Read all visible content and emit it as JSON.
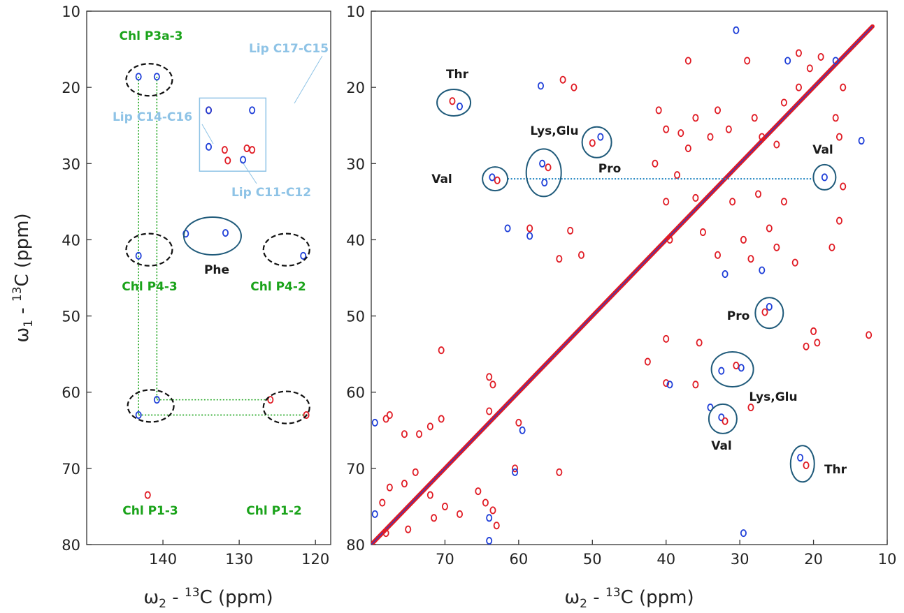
{
  "chart_data": [
    {
      "type": "heatmap",
      "panel": "left",
      "xlabel": "ω2 - 13C (ppm)",
      "ylabel": "ω1 - 13C (ppm)",
      "xlim": [
        150,
        118
      ],
      "ylim": [
        10,
        80
      ],
      "xticks": [
        140,
        130,
        120
      ],
      "yticks": [
        10,
        20,
        30,
        40,
        50,
        60,
        70,
        80
      ],
      "colors": {
        "positive": "#e01b24",
        "negative": "#1f3fd8",
        "green": "#1aa31a",
        "lightblue": "#8ec3e6",
        "circle": "#1f5a7a"
      },
      "peaks": [
        {
          "x": 143.2,
          "y": 18.6,
          "sign": "neg"
        },
        {
          "x": 140.8,
          "y": 18.6,
          "sign": "neg"
        },
        {
          "x": 134.0,
          "y": 23.0,
          "sign": "pos"
        },
        {
          "x": 134.0,
          "y": 23.0,
          "sign": "neg"
        },
        {
          "x": 128.3,
          "y": 23.0,
          "sign": "neg"
        },
        {
          "x": 134.0,
          "y": 27.8,
          "sign": "neg"
        },
        {
          "x": 131.9,
          "y": 28.2,
          "sign": "pos"
        },
        {
          "x": 129.0,
          "y": 28.0,
          "sign": "pos"
        },
        {
          "x": 128.3,
          "y": 28.2,
          "sign": "pos"
        },
        {
          "x": 131.5,
          "y": 29.6,
          "sign": "pos"
        },
        {
          "x": 129.5,
          "y": 29.5,
          "sign": "neg"
        },
        {
          "x": 137.0,
          "y": 39.2,
          "sign": "neg"
        },
        {
          "x": 131.8,
          "y": 39.1,
          "sign": "neg"
        },
        {
          "x": 143.2,
          "y": 42.1,
          "sign": "neg"
        },
        {
          "x": 121.6,
          "y": 42.1,
          "sign": "neg"
        },
        {
          "x": 140.8,
          "y": 61.0,
          "sign": "neg"
        },
        {
          "x": 143.2,
          "y": 63.0,
          "sign": "neg"
        },
        {
          "x": 125.9,
          "y": 61.0,
          "sign": "pos"
        },
        {
          "x": 121.2,
          "y": 63.0,
          "sign": "pos"
        },
        {
          "x": 142.0,
          "y": 73.5,
          "sign": "pos"
        }
      ],
      "dashed_circles": [
        {
          "x": 141.8,
          "y": 19.0,
          "label": "Chl P3a-3"
        },
        {
          "x": 141.8,
          "y": 41.3,
          "label": "Chl P4-3"
        },
        {
          "x": 123.8,
          "y": 41.3,
          "label": "Chl P4-2"
        },
        {
          "x": 141.6,
          "y": 61.8,
          "label": "Chl P1-3"
        },
        {
          "x": 123.8,
          "y": 62.0,
          "label": "Chl P1-2"
        }
      ],
      "green_lines": [
        {
          "x1": 143.2,
          "y1": 18.6,
          "x2": 143.2,
          "y2": 63.0
        },
        {
          "x1": 140.8,
          "y1": 18.6,
          "x2": 140.8,
          "y2": 61.0
        },
        {
          "x1": 140.8,
          "y1": 61.0,
          "x2": 125.9,
          "y2": 61.0
        },
        {
          "x1": 143.2,
          "y1": 63.0,
          "x2": 121.2,
          "y2": 63.0
        }
      ],
      "box": {
        "x1": 135.2,
        "y1": 21.4,
        "x2": 126.5,
        "y2": 31.0
      },
      "lip_labels": [
        "Lip C17-C15",
        "Lip C14-C16",
        "Lip C11-C12"
      ],
      "phe": {
        "x": 133.5,
        "y": 39.5,
        "label": "Phe"
      }
    },
    {
      "type": "heatmap",
      "panel": "right",
      "xlabel": "ω2 - 13C (ppm)",
      "ylabel": "",
      "xlim": [
        80,
        10
      ],
      "ylim": [
        10,
        80
      ],
      "xticks": [
        70,
        60,
        50,
        40,
        30,
        20,
        10
      ],
      "yticks": [
        10,
        20,
        30,
        40,
        50,
        60,
        70,
        80
      ],
      "diagonal": [
        80,
        12
      ],
      "annotations": [
        {
          "label": "Thr",
          "x": 68.8,
          "y": 22.0,
          "circle": true
        },
        {
          "label": "Lys,Glu",
          "x": 56.6,
          "y": 31.2,
          "circle": true
        },
        {
          "label": "Pro",
          "x": 49.4,
          "y": 27.2,
          "circle": true
        },
        {
          "label": "Val",
          "x": 63.2,
          "y": 32.0,
          "circle": true
        },
        {
          "label": "Val",
          "x": 18.5,
          "y": 31.8,
          "circle": true
        },
        {
          "label": "Pro",
          "x": 26.0,
          "y": 49.6,
          "circle": true
        },
        {
          "label": "Lys,Glu",
          "x": 31.0,
          "y": 57.0,
          "circle": true
        },
        {
          "label": "Val",
          "x": 32.3,
          "y": 63.5,
          "circle": true
        },
        {
          "label": "Thr",
          "x": 21.5,
          "y": 69.4,
          "circle": true
        }
      ],
      "dotted_line": {
        "x1": 63.2,
        "x2": 18.5,
        "y": 32.0
      },
      "peaks": [
        {
          "x": 69.0,
          "y": 21.8,
          "sign": "pos"
        },
        {
          "x": 68.0,
          "y": 22.5,
          "sign": "neg"
        },
        {
          "x": 56.8,
          "y": 30.0,
          "sign": "neg"
        },
        {
          "x": 56.0,
          "y": 30.5,
          "sign": "pos"
        },
        {
          "x": 56.5,
          "y": 32.5,
          "sign": "neg"
        },
        {
          "x": 50.0,
          "y": 27.3,
          "sign": "pos"
        },
        {
          "x": 48.9,
          "y": 26.5,
          "sign": "neg"
        },
        {
          "x": 63.6,
          "y": 31.8,
          "sign": "neg"
        },
        {
          "x": 62.9,
          "y": 32.2,
          "sign": "pos"
        },
        {
          "x": 18.5,
          "y": 31.8,
          "sign": "neg"
        },
        {
          "x": 26.0,
          "y": 48.8,
          "sign": "neg"
        },
        {
          "x": 26.6,
          "y": 49.5,
          "sign": "pos"
        },
        {
          "x": 32.5,
          "y": 57.2,
          "sign": "neg"
        },
        {
          "x": 29.8,
          "y": 56.8,
          "sign": "neg"
        },
        {
          "x": 30.5,
          "y": 56.5,
          "sign": "pos"
        },
        {
          "x": 32.5,
          "y": 63.3,
          "sign": "neg"
        },
        {
          "x": 32.0,
          "y": 63.8,
          "sign": "pos"
        },
        {
          "x": 21.8,
          "y": 68.6,
          "sign": "neg"
        },
        {
          "x": 21.0,
          "y": 69.6,
          "sign": "pos"
        },
        {
          "x": 54.0,
          "y": 19.0,
          "sign": "pos"
        },
        {
          "x": 52.5,
          "y": 20.0,
          "sign": "pos"
        },
        {
          "x": 57.0,
          "y": 19.8,
          "sign": "neg"
        },
        {
          "x": 41.0,
          "y": 23.0,
          "sign": "pos"
        },
        {
          "x": 40.0,
          "y": 25.5,
          "sign": "pos"
        },
        {
          "x": 38.0,
          "y": 26.0,
          "sign": "pos"
        },
        {
          "x": 37.0,
          "y": 28.0,
          "sign": "pos"
        },
        {
          "x": 36.0,
          "y": 24.0,
          "sign": "pos"
        },
        {
          "x": 34.0,
          "y": 26.5,
          "sign": "pos"
        },
        {
          "x": 33.0,
          "y": 23.0,
          "sign": "pos"
        },
        {
          "x": 31.5,
          "y": 25.5,
          "sign": "pos"
        },
        {
          "x": 28.0,
          "y": 24.0,
          "sign": "pos"
        },
        {
          "x": 27.0,
          "y": 26.5,
          "sign": "pos"
        },
        {
          "x": 25.0,
          "y": 27.5,
          "sign": "pos"
        },
        {
          "x": 24.0,
          "y": 22.0,
          "sign": "pos"
        },
        {
          "x": 22.0,
          "y": 20.0,
          "sign": "pos"
        },
        {
          "x": 20.5,
          "y": 17.5,
          "sign": "pos"
        },
        {
          "x": 19.0,
          "y": 16.0,
          "sign": "pos"
        },
        {
          "x": 16.0,
          "y": 20.0,
          "sign": "pos"
        },
        {
          "x": 17.0,
          "y": 24.0,
          "sign": "pos"
        },
        {
          "x": 16.5,
          "y": 26.5,
          "sign": "pos"
        },
        {
          "x": 16.0,
          "y": 33.0,
          "sign": "pos"
        },
        {
          "x": 16.5,
          "y": 37.5,
          "sign": "pos"
        },
        {
          "x": 17.5,
          "y": 41.0,
          "sign": "pos"
        },
        {
          "x": 13.5,
          "y": 27.0,
          "sign": "neg"
        },
        {
          "x": 23.5,
          "y": 16.5,
          "sign": "neg"
        },
        {
          "x": 22.0,
          "y": 15.5,
          "sign": "pos"
        },
        {
          "x": 29.0,
          "y": 16.5,
          "sign": "pos"
        },
        {
          "x": 30.5,
          "y": 12.5,
          "sign": "neg"
        },
        {
          "x": 37.0,
          "y": 16.5,
          "sign": "pos"
        },
        {
          "x": 41.5,
          "y": 30.0,
          "sign": "pos"
        },
        {
          "x": 40.0,
          "y": 35.0,
          "sign": "pos"
        },
        {
          "x": 38.5,
          "y": 31.5,
          "sign": "pos"
        },
        {
          "x": 36.0,
          "y": 34.5,
          "sign": "pos"
        },
        {
          "x": 35.0,
          "y": 39.0,
          "sign": "pos"
        },
        {
          "x": 33.0,
          "y": 42.0,
          "sign": "pos"
        },
        {
          "x": 31.0,
          "y": 35.0,
          "sign": "pos"
        },
        {
          "x": 29.5,
          "y": 40.0,
          "sign": "pos"
        },
        {
          "x": 28.5,
          "y": 42.5,
          "sign": "pos"
        },
        {
          "x": 27.5,
          "y": 34.0,
          "sign": "pos"
        },
        {
          "x": 26.0,
          "y": 38.5,
          "sign": "pos"
        },
        {
          "x": 25.0,
          "y": 41.0,
          "sign": "pos"
        },
        {
          "x": 24.0,
          "y": 35.0,
          "sign": "pos"
        },
        {
          "x": 22.5,
          "y": 43.0,
          "sign": "pos"
        },
        {
          "x": 32.0,
          "y": 44.5,
          "sign": "neg"
        },
        {
          "x": 27.0,
          "y": 44.0,
          "sign": "neg"
        },
        {
          "x": 39.5,
          "y": 40.0,
          "sign": "pos"
        },
        {
          "x": 53.0,
          "y": 38.8,
          "sign": "pos"
        },
        {
          "x": 58.5,
          "y": 38.5,
          "sign": "pos"
        },
        {
          "x": 58.5,
          "y": 39.5,
          "sign": "neg"
        },
        {
          "x": 61.5,
          "y": 38.5,
          "sign": "neg"
        },
        {
          "x": 54.5,
          "y": 42.5,
          "sign": "pos"
        },
        {
          "x": 51.5,
          "y": 42.0,
          "sign": "pos"
        },
        {
          "x": 42.5,
          "y": 56.0,
          "sign": "pos"
        },
        {
          "x": 40.0,
          "y": 53.0,
          "sign": "pos"
        },
        {
          "x": 40.0,
          "y": 58.8,
          "sign": "pos"
        },
        {
          "x": 39.5,
          "y": 59.0,
          "sign": "neg"
        },
        {
          "x": 36.0,
          "y": 59.0,
          "sign": "pos"
        },
        {
          "x": 35.5,
          "y": 53.5,
          "sign": "pos"
        },
        {
          "x": 34.0,
          "y": 62.0,
          "sign": "neg"
        },
        {
          "x": 28.5,
          "y": 62.0,
          "sign": "pos"
        },
        {
          "x": 20.0,
          "y": 52.0,
          "sign": "pos"
        },
        {
          "x": 19.5,
          "y": 53.5,
          "sign": "pos"
        },
        {
          "x": 21.0,
          "y": 54.0,
          "sign": "pos"
        },
        {
          "x": 29.5,
          "y": 78.5,
          "sign": "neg"
        },
        {
          "x": 70.5,
          "y": 54.5,
          "sign": "pos"
        },
        {
          "x": 64.0,
          "y": 58.0,
          "sign": "pos"
        },
        {
          "x": 63.5,
          "y": 59.0,
          "sign": "pos"
        },
        {
          "x": 60.0,
          "y": 64.0,
          "sign": "pos"
        },
        {
          "x": 59.5,
          "y": 65.0,
          "sign": "neg"
        },
        {
          "x": 64.0,
          "y": 62.5,
          "sign": "pos"
        },
        {
          "x": 60.5,
          "y": 70.0,
          "sign": "pos"
        },
        {
          "x": 60.5,
          "y": 70.5,
          "sign": "neg"
        },
        {
          "x": 54.5,
          "y": 70.5,
          "sign": "pos"
        },
        {
          "x": 65.5,
          "y": 73.0,
          "sign": "pos"
        },
        {
          "x": 64.5,
          "y": 74.5,
          "sign": "pos"
        },
        {
          "x": 63.5,
          "y": 75.5,
          "sign": "pos"
        },
        {
          "x": 64.0,
          "y": 76.5,
          "sign": "neg"
        },
        {
          "x": 64.0,
          "y": 79.5,
          "sign": "neg"
        },
        {
          "x": 63.0,
          "y": 77.5,
          "sign": "pos"
        },
        {
          "x": 70.5,
          "y": 63.5,
          "sign": "pos"
        },
        {
          "x": 72.0,
          "y": 64.5,
          "sign": "pos"
        },
        {
          "x": 73.5,
          "y": 65.5,
          "sign": "pos"
        },
        {
          "x": 75.5,
          "y": 65.5,
          "sign": "pos"
        },
        {
          "x": 77.5,
          "y": 63.0,
          "sign": "pos"
        },
        {
          "x": 78.0,
          "y": 63.5,
          "sign": "pos"
        },
        {
          "x": 79.5,
          "y": 64.0,
          "sign": "neg"
        },
        {
          "x": 74.0,
          "y": 70.5,
          "sign": "pos"
        },
        {
          "x": 75.5,
          "y": 72.0,
          "sign": "pos"
        },
        {
          "x": 77.5,
          "y": 72.5,
          "sign": "pos"
        },
        {
          "x": 78.5,
          "y": 74.5,
          "sign": "pos"
        },
        {
          "x": 79.5,
          "y": 76.0,
          "sign": "neg"
        },
        {
          "x": 72.0,
          "y": 73.5,
          "sign": "pos"
        },
        {
          "x": 70.0,
          "y": 75.0,
          "sign": "pos"
        },
        {
          "x": 68.0,
          "y": 76.0,
          "sign": "pos"
        },
        {
          "x": 71.5,
          "y": 76.5,
          "sign": "pos"
        },
        {
          "x": 75.0,
          "y": 78.0,
          "sign": "pos"
        },
        {
          "x": 78.0,
          "y": 78.5,
          "sign": "pos"
        },
        {
          "x": 17.0,
          "y": 16.5,
          "sign": "neg"
        },
        {
          "x": 12.5,
          "y": 52.5,
          "sign": "pos"
        }
      ]
    }
  ]
}
